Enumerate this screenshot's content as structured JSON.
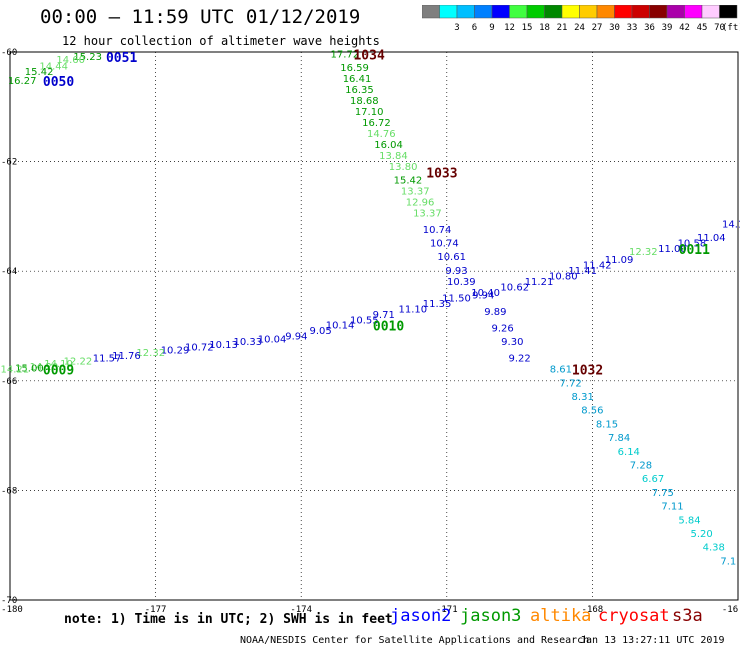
{
  "header": {
    "title": "00:00 – 11:59 UTC 01/12/2019",
    "subtitle": "12 hour collection of altimeter wave heights"
  },
  "scale": {
    "unit": "(ft)",
    "bins": [
      {
        "label": "",
        "color": "#7f7f7f"
      },
      {
        "label": "3",
        "color": "#00ffff"
      },
      {
        "label": "6",
        "color": "#00bfff"
      },
      {
        "label": "9",
        "color": "#0080ff"
      },
      {
        "label": "12",
        "color": "#0000ff"
      },
      {
        "label": "15",
        "color": "#40ff40"
      },
      {
        "label": "18",
        "color": "#00cc00"
      },
      {
        "label": "21",
        "color": "#008800"
      },
      {
        "label": "24",
        "color": "#ffff00"
      },
      {
        "label": "27",
        "color": "#ffcc00"
      },
      {
        "label": "30",
        "color": "#ff8800"
      },
      {
        "label": "33",
        "color": "#ff0000"
      },
      {
        "label": "36",
        "color": "#cc0000"
      },
      {
        "label": "39",
        "color": "#880000"
      },
      {
        "label": "42",
        "color": "#aa00aa"
      },
      {
        "label": "45",
        "color": "#ff00ff"
      },
      {
        "label": "70",
        "color": "#ffccff"
      },
      {
        "label": "",
        "color": "#000000"
      }
    ]
  },
  "map": {
    "lon_range": [
      -180,
      -165
    ],
    "lat_range": [
      -70,
      -60
    ],
    "lon_ticks": [
      "-180",
      "-177",
      "-174",
      "-171",
      "-168",
      "-16"
    ],
    "lat_ticks": [
      "-60",
      "-62",
      "-64",
      "-66",
      "-68",
      "-70"
    ],
    "grid_lon": [
      -177,
      -174,
      -171,
      -168
    ],
    "grid_lat": [
      -62,
      -64,
      -66,
      -68
    ]
  },
  "colors": {
    "jason2": "#0000cc",
    "jason3": "#009900",
    "altika": "#ff8800",
    "cryosat": "#cc0000",
    "s3a": "#660000",
    "cyan": "#00cccc",
    "lightblue": "#0099cc",
    "lightgreen": "#66dd66"
  },
  "tracks": [
    {
      "time": "1034",
      "time_color": "s3a",
      "time_pos": [
        -172.6,
        -60.1
      ],
      "points": [
        {
          "v": "17.72",
          "lon": -173.1,
          "lat": -60.1,
          "c": "jason3"
        },
        {
          "v": "16.59",
          "lon": -172.9,
          "lat": -60.35,
          "c": "jason3"
        },
        {
          "v": "16.41",
          "lon": -172.85,
          "lat": -60.55,
          "c": "jason3"
        },
        {
          "v": "16.35",
          "lon": -172.8,
          "lat": -60.75,
          "c": "jason3"
        },
        {
          "v": "18.68",
          "lon": -172.7,
          "lat": -60.95,
          "c": "jason3"
        },
        {
          "v": "17.10",
          "lon": -172.6,
          "lat": -61.15,
          "c": "jason3"
        },
        {
          "v": "16.72",
          "lon": -172.45,
          "lat": -61.35,
          "c": "jason3"
        },
        {
          "v": "14.76",
          "lon": -172.35,
          "lat": -61.55,
          "c": "lightgreen"
        },
        {
          "v": "16.04",
          "lon": -172.2,
          "lat": -61.75,
          "c": "jason3"
        },
        {
          "v": "13.84",
          "lon": -172.1,
          "lat": -61.95,
          "c": "lightgreen"
        },
        {
          "v": "13.80",
          "lon": -171.9,
          "lat": -62.15,
          "c": "lightgreen"
        },
        {
          "v": "15.42",
          "lon": -171.8,
          "lat": -62.4,
          "c": "jason3"
        },
        {
          "v": "13.37",
          "lon": -171.65,
          "lat": -62.6,
          "c": "lightgreen"
        },
        {
          "v": "12.96",
          "lon": -171.55,
          "lat": -62.8,
          "c": "lightgreen"
        },
        {
          "v": "13.37",
          "lon": -171.4,
          "lat": -63.0,
          "c": "lightgreen"
        },
        {
          "v": "10.74",
          "lon": -171.2,
          "lat": -63.3,
          "c": "jason2"
        },
        {
          "v": "10.74",
          "lon": -171.05,
          "lat": -63.55,
          "c": "jason2"
        },
        {
          "v": "10.61",
          "lon": -170.9,
          "lat": -63.8,
          "c": "jason2"
        },
        {
          "v": "9.93",
          "lon": -170.8,
          "lat": -64.05,
          "c": "jason2"
        },
        {
          "v": "10.39",
          "lon": -170.7,
          "lat": -64.25,
          "c": "jason2"
        },
        {
          "v": "9.94",
          "lon": -170.25,
          "lat": -64.5,
          "c": "jason2"
        },
        {
          "v": "9.89",
          "lon": -170.0,
          "lat": -64.8,
          "c": "jason2"
        },
        {
          "v": "9.26",
          "lon": -169.85,
          "lat": -65.1,
          "c": "jason2"
        },
        {
          "v": "9.30",
          "lon": -169.65,
          "lat": -65.35,
          "c": "jason2"
        },
        {
          "v": "9.22",
          "lon": -169.5,
          "lat": -65.65,
          "c": "jason2"
        }
      ]
    },
    {
      "time": "1033",
      "time_color": "s3a",
      "time_pos": [
        -171.1,
        -62.25
      ],
      "points": []
    },
    {
      "time": "1032",
      "time_color": "s3a",
      "time_pos": [
        -168.1,
        -65.85
      ],
      "points": [
        {
          "v": "8.61",
          "lon": -168.65,
          "lat": -65.85,
          "c": "lightblue"
        },
        {
          "v": "7.72",
          "lon": -168.45,
          "lat": -66.1,
          "c": "lightblue"
        },
        {
          "v": "8.31",
          "lon": -168.2,
          "lat": -66.35,
          "c": "lightblue"
        },
        {
          "v": "8.56",
          "lon": -168.0,
          "lat": -66.6,
          "c": "lightblue"
        },
        {
          "v": "8.15",
          "lon": -167.7,
          "lat": -66.85,
          "c": "lightblue"
        },
        {
          "v": "7.84",
          "lon": -167.45,
          "lat": -67.1,
          "c": "lightblue"
        },
        {
          "v": "6.14",
          "lon": -167.25,
          "lat": -67.35,
          "c": "cyan"
        },
        {
          "v": "7.28",
          "lon": -167.0,
          "lat": -67.6,
          "c": "lightblue"
        },
        {
          "v": "6.67",
          "lon": -166.75,
          "lat": -67.85,
          "c": "cyan"
        },
        {
          "v": "7.75",
          "lon": -166.55,
          "lat": -68.1,
          "c": "lightblue"
        },
        {
          "v": "7.11",
          "lon": -166.35,
          "lat": -68.35,
          "c": "lightblue"
        },
        {
          "v": "5.84",
          "lon": -166.0,
          "lat": -68.6,
          "c": "cyan"
        },
        {
          "v": "5.20",
          "lon": -165.75,
          "lat": -68.85,
          "c": "cyan"
        },
        {
          "v": "4.38",
          "lon": -165.5,
          "lat": -69.1,
          "c": "cyan"
        },
        {
          "v": "7.1",
          "lon": -165.2,
          "lat": -69.35,
          "c": "lightblue"
        }
      ]
    },
    {
      "time": "0051",
      "time_color": "jason2",
      "time_pos": [
        -177.7,
        -60.15
      ],
      "points": [
        {
          "v": "15.23",
          "lon": -178.4,
          "lat": -60.15,
          "c": "jason3"
        },
        {
          "v": "14.60",
          "lon": -178.75,
          "lat": -60.2,
          "c": "lightgreen"
        },
        {
          "v": "14.44",
          "lon": -179.1,
          "lat": -60.32,
          "c": "lightgreen"
        },
        {
          "v": "15.42",
          "lon": -179.4,
          "lat": -60.42,
          "c": "jason3"
        },
        {
          "v": "16.27",
          "lon": -179.75,
          "lat": -60.58,
          "c": "jason3"
        }
      ]
    },
    {
      "time": "0050",
      "time_color": "jason2",
      "time_pos": [
        -179.0,
        -60.58
      ],
      "points": []
    },
    {
      "time": "0011",
      "time_color": "jason3",
      "time_pos": [
        -165.9,
        -63.65
      ],
      "points": [
        {
          "v": "14.1",
          "lon": -165.1,
          "lat": -63.2,
          "c": "jason2"
        },
        {
          "v": "11.04",
          "lon": -165.55,
          "lat": -63.45,
          "c": "jason2"
        },
        {
          "v": "10.58",
          "lon": -165.95,
          "lat": -63.55,
          "c": "jason2"
        },
        {
          "v": "11.00",
          "lon": -166.35,
          "lat": -63.65,
          "c": "jason2"
        },
        {
          "v": "12.32",
          "lon": -166.95,
          "lat": -63.7,
          "c": "lightgreen"
        },
        {
          "v": "11.09",
          "lon": -167.45,
          "lat": -63.85,
          "c": "jason2"
        },
        {
          "v": "11.42",
          "lon": -167.9,
          "lat": -63.95,
          "c": "jason2"
        },
        {
          "v": "11.41",
          "lon": -168.2,
          "lat": -64.05,
          "c": "jason2"
        },
        {
          "v": "10.80",
          "lon": -168.6,
          "lat": -64.15,
          "c": "jason2"
        },
        {
          "v": "11.21",
          "lon": -169.1,
          "lat": -64.25,
          "c": "jason2"
        },
        {
          "v": "10.62",
          "lon": -169.6,
          "lat": -64.35,
          "c": "jason2"
        },
        {
          "v": "10.40",
          "lon": -170.2,
          "lat": -64.45,
          "c": "jason2"
        },
        {
          "v": "11.50",
          "lon": -170.8,
          "lat": -64.55,
          "c": "jason2"
        },
        {
          "v": "11.35",
          "lon": -171.2,
          "lat": -64.65,
          "c": "jason2"
        },
        {
          "v": "11.10",
          "lon": -171.7,
          "lat": -64.75,
          "c": "jason2"
        },
        {
          "v": "9.71",
          "lon": -172.3,
          "lat": -64.85,
          "c": "jason2"
        },
        {
          "v": "10.55",
          "lon": -172.7,
          "lat": -64.95,
          "c": "jason2"
        },
        {
          "v": "10.14",
          "lon": -173.2,
          "lat": -65.05,
          "c": "jason2"
        },
        {
          "v": "9.05",
          "lon": -173.6,
          "lat": -65.15,
          "c": "jason2"
        },
        {
          "v": "9.94",
          "lon": -174.1,
          "lat": -65.25,
          "c": "jason2"
        },
        {
          "v": "10.04",
          "lon": -174.6,
          "lat": -65.3,
          "c": "jason2"
        },
        {
          "v": "10.33",
          "lon": -175.1,
          "lat": -65.35,
          "c": "jason2"
        },
        {
          "v": "10.13",
          "lon": -175.6,
          "lat": -65.4,
          "c": "jason2"
        },
        {
          "v": "10.72",
          "lon": -176.1,
          "lat": -65.45,
          "c": "jason2"
        },
        {
          "v": "10.29",
          "lon": -176.6,
          "lat": -65.5,
          "c": "jason2"
        },
        {
          "v": "12.32",
          "lon": -177.1,
          "lat": -65.55,
          "c": "lightgreen"
        },
        {
          "v": "11.76",
          "lon": -177.6,
          "lat": -65.6,
          "c": "jason2"
        },
        {
          "v": "11.57",
          "lon": -178.0,
          "lat": -65.65,
          "c": "jason2"
        },
        {
          "v": "12.22",
          "lon": -178.6,
          "lat": -65.7,
          "c": "lightgreen"
        },
        {
          "v": "14.10",
          "lon": -179.0,
          "lat": -65.75,
          "c": "lightgreen"
        },
        {
          "v": "14.20",
          "lon": -179.3,
          "lat": -65.8,
          "c": "lightgreen"
        },
        {
          "v": "15.00",
          "lon": -179.6,
          "lat": -65.83,
          "c": "jason3"
        },
        {
          "v": "14.21",
          "lon": -179.9,
          "lat": -65.85,
          "c": "lightgreen"
        }
      ]
    },
    {
      "time": "0010",
      "time_color": "jason3",
      "time_pos": [
        -172.2,
        -65.05
      ],
      "points": []
    },
    {
      "time": "0009",
      "time_color": "jason3",
      "time_pos": [
        -179.0,
        -65.85
      ],
      "points": []
    }
  ],
  "footer": {
    "note": "note: 1) Time is in UTC; 2) SWH is in feet",
    "satellites": [
      {
        "name": "jason2",
        "color": "#0000ff"
      },
      {
        "name": "jason3",
        "color": "#009900"
      },
      {
        "name": "altika",
        "color": "#ff8800"
      },
      {
        "name": "cryosat",
        "color": "#ff0000"
      },
      {
        "name": "s3a",
        "color": "#880000"
      }
    ],
    "credit": "NOAA/NESDIS Center for Satellite Applications and Research",
    "timestamp": "Jan 13 13:27:11 UTC 2019"
  }
}
